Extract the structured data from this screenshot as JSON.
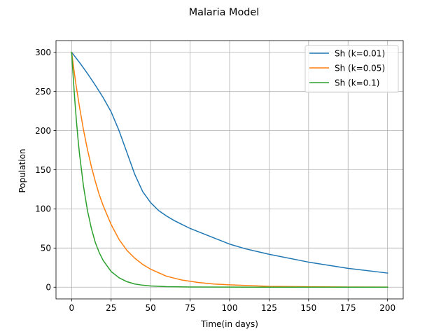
{
  "chart_data": {
    "type": "line",
    "title": "Malaria Model",
    "xlabel": "Time(in days)",
    "ylabel": "Population",
    "xlim": [
      -9.9,
      209.9
    ],
    "ylim": [
      -15,
      315
    ],
    "xticks": [
      0,
      25,
      50,
      75,
      100,
      125,
      150,
      175,
      200
    ],
    "yticks": [
      0,
      50,
      100,
      150,
      200,
      250,
      300
    ],
    "grid": true,
    "legend_position": "top-right",
    "series": [
      {
        "name": "Sh (k=0.01)",
        "color": "#1f77b4",
        "x": [
          0,
          5,
          10,
          15,
          20,
          25,
          30,
          35,
          40,
          45,
          50,
          55,
          60,
          65,
          70,
          75,
          80,
          90,
          100,
          110,
          125,
          150,
          175,
          200
        ],
        "y": [
          300,
          287,
          273,
          258,
          242,
          224,
          200,
          172,
          144,
          122,
          108,
          98,
          91,
          85,
          80,
          75,
          71,
          63,
          55,
          49,
          42,
          32,
          24,
          18
        ]
      },
      {
        "name": "Sh (k=0.05)",
        "color": "#ff7f0e",
        "x": [
          0,
          2.5,
          5,
          7.5,
          10,
          12.5,
          15,
          17.5,
          20,
          25,
          30,
          35,
          40,
          45,
          50,
          60,
          70,
          80,
          90,
          100,
          125,
          150,
          175,
          200
        ],
        "y": [
          300,
          262,
          230,
          201,
          176,
          154,
          135,
          118,
          104,
          80,
          61,
          47,
          37,
          29,
          23,
          14,
          9,
          6,
          4,
          3,
          1,
          0.5,
          0.2,
          0.1
        ]
      },
      {
        "name": "Sh (k=0.1)",
        "color": "#2ca02c",
        "x": [
          0,
          1,
          2,
          3,
          4,
          5,
          7.5,
          10,
          12.5,
          15,
          17.5,
          20,
          25,
          30,
          35,
          40,
          45,
          50,
          60,
          75,
          100,
          125,
          150,
          200
        ],
        "y": [
          300,
          268,
          239,
          213,
          190,
          170,
          129,
          98,
          75,
          57,
          44,
          34,
          20,
          12,
          7,
          4,
          2.5,
          1.5,
          0.6,
          0.2,
          0.05,
          0,
          0,
          0
        ]
      }
    ]
  }
}
